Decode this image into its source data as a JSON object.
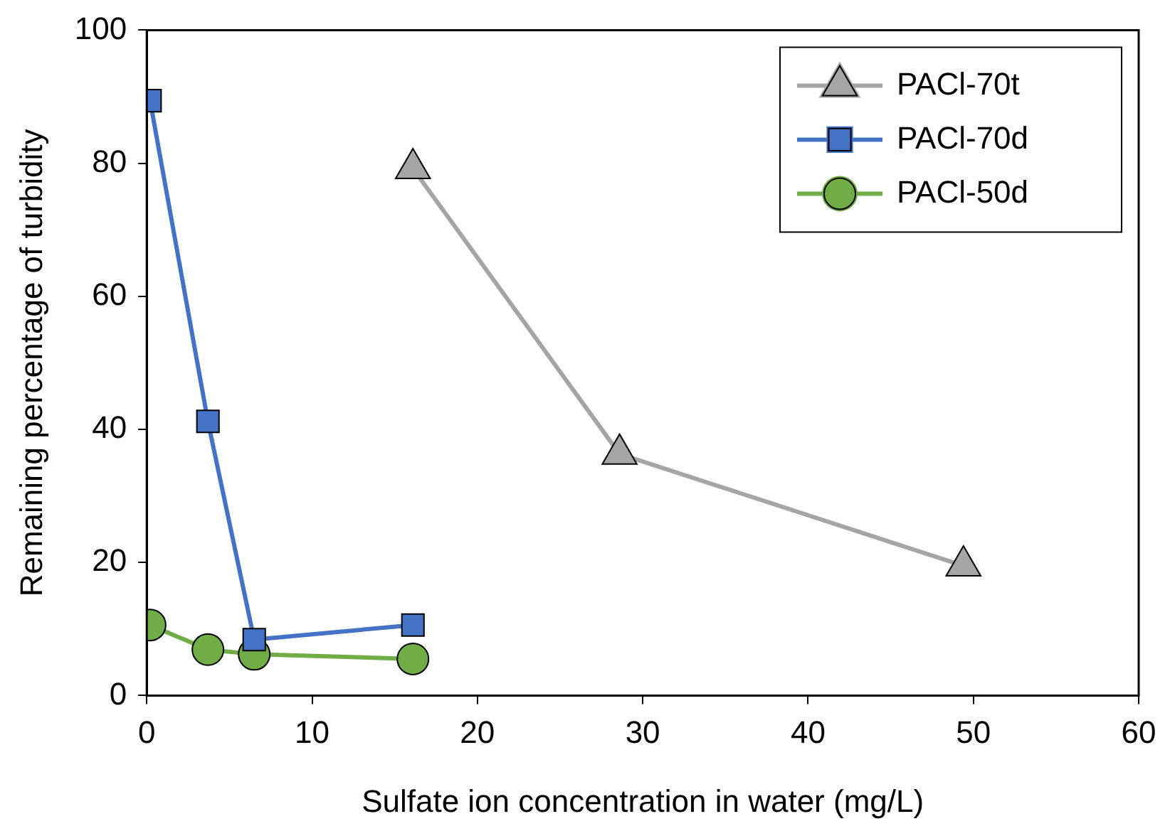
{
  "chart_data": {
    "type": "line",
    "xlabel": "Sulfate ion concentration in water (mg/L)",
    "ylabel": "Remaining percentage of turbidity",
    "xlim": [
      0,
      60
    ],
    "xticks": [
      0,
      10,
      20,
      30,
      40,
      50,
      60
    ],
    "ylim": [
      0,
      100
    ],
    "yticks": [
      0,
      20,
      40,
      60,
      80,
      100
    ],
    "grid": false,
    "legend": "top right",
    "series": [
      {
        "name": "PACl-70t",
        "color": "#a5a5a5",
        "marker": "triangle",
        "x": [
          16.1,
          28.6,
          49.4
        ],
        "values": [
          79.2,
          36.3,
          19.5
        ]
      },
      {
        "name": "PACl-70d",
        "color": "#4472c4",
        "marker": "square",
        "x": [
          0.2,
          3.7,
          6.5,
          16.1
        ],
        "values": [
          89.4,
          41.2,
          8.4,
          10.6
        ]
      },
      {
        "name": "PACl-50d",
        "color": "#70ad47",
        "marker": "circle",
        "x": [
          0.2,
          3.7,
          6.5,
          16.1
        ],
        "values": [
          10.6,
          6.9,
          6.2,
          5.5
        ]
      }
    ]
  }
}
